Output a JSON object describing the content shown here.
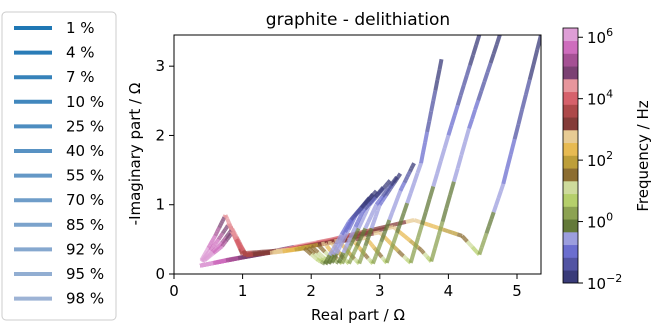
{
  "chart_data": {
    "type": "line",
    "title": "graphite - delithiation",
    "xlabel": "Real part  /  Ω",
    "ylabel": "-Imaginary part  /  Ω",
    "xlim": [
      0,
      5.35
    ],
    "ylim": [
      0,
      3.45
    ],
    "xticks": [
      "0",
      "1",
      "2",
      "3",
      "4",
      "5"
    ],
    "yticks": [
      "0",
      "1",
      "2",
      "3"
    ],
    "grid": false,
    "legend": {
      "placement": "left, outside plot",
      "entries": [
        "1 %",
        "4 %",
        "7 %",
        "10 %",
        "25 %",
        "40 %",
        "55 %",
        "70 %",
        "85 %",
        "92 %",
        "95 %",
        "98 %"
      ],
      "colors": [
        "#1f77b4",
        "#2a7cb7",
        "#3682ba",
        "#4187bd",
        "#4d8dc0",
        "#5892c3",
        "#6498c6",
        "#6f9dc9",
        "#7ba3cc",
        "#86a8cf",
        "#92aed2",
        "#9db3d5"
      ]
    },
    "colorbar": {
      "label": "Frequency  /  Hz",
      "scale": "log",
      "range": [
        0.01,
        2000000
      ],
      "ticks": [
        "10",
        "10",
        "10",
        "10",
        "10"
      ],
      "tick_exponents": [
        "−2",
        "0",
        "2",
        "4",
        "6"
      ],
      "colormap": "tab20b",
      "colors": [
        "#393b79",
        "#5254a3",
        "#6b6ecf",
        "#9c9ede",
        "#637939",
        "#8ca252",
        "#b5cf6b",
        "#cedb9c",
        "#8c6d31",
        "#bd9e39",
        "#e7ba52",
        "#e7cb94",
        "#843c39",
        "#ad494a",
        "#d6616b",
        "#e7969c",
        "#7b4173",
        "#a55194",
        "#ce6dbd",
        "#de9ed6"
      ]
    },
    "series": [
      {
        "name": "1 %",
        "values": [
          [
            0.38,
            0.12
          ],
          [
            1.2,
            0.28
          ],
          [
            2.3,
            0.5
          ],
          [
            3.5,
            0.78
          ],
          [
            4.2,
            0.55
          ],
          [
            4.45,
            0.28
          ],
          [
            4.8,
            1.3
          ],
          [
            5.35,
            3.45
          ]
        ]
      },
      {
        "name": "4 %",
        "values": [
          [
            0.38,
            0.12
          ],
          [
            1.15,
            0.27
          ],
          [
            2.2,
            0.46
          ],
          [
            3.2,
            0.68
          ],
          [
            3.6,
            0.35
          ],
          [
            3.75,
            0.18
          ],
          [
            4.3,
            2.1
          ],
          [
            4.75,
            3.45
          ]
        ]
      },
      {
        "name": "7 %",
        "values": [
          [
            0.38,
            0.12
          ],
          [
            1.1,
            0.26
          ],
          [
            2.1,
            0.44
          ],
          [
            3.0,
            0.6
          ],
          [
            3.3,
            0.3
          ],
          [
            3.45,
            0.16
          ],
          [
            4.0,
            2.0
          ],
          [
            4.45,
            3.45
          ]
        ]
      },
      {
        "name": "10 %",
        "values": [
          [
            0.38,
            0.12
          ],
          [
            1.05,
            0.25
          ],
          [
            2.0,
            0.42
          ],
          [
            2.8,
            0.52
          ],
          [
            3.0,
            0.28
          ],
          [
            3.1,
            0.16
          ],
          [
            3.6,
            1.6
          ],
          [
            3.9,
            3.1
          ]
        ]
      },
      {
        "name": "25 %",
        "values": [
          [
            0.38,
            0.12
          ],
          [
            1.0,
            0.24
          ],
          [
            1.9,
            0.4
          ],
          [
            2.6,
            0.5
          ],
          [
            2.8,
            0.26
          ],
          [
            2.9,
            0.15
          ],
          [
            3.3,
            1.2
          ],
          [
            3.5,
            1.6
          ]
        ]
      },
      {
        "name": "40 %",
        "values": [
          [
            0.38,
            0.12
          ],
          [
            0.95,
            0.23
          ],
          [
            1.8,
            0.38
          ],
          [
            2.4,
            0.48
          ],
          [
            2.6,
            0.25
          ],
          [
            2.7,
            0.15
          ],
          [
            3.0,
            1.0
          ],
          [
            3.3,
            1.45
          ]
        ]
      },
      {
        "name": "55 %",
        "values": [
          [
            0.38,
            0.12
          ],
          [
            0.9,
            0.22
          ],
          [
            1.75,
            0.37
          ],
          [
            2.3,
            0.45
          ],
          [
            2.45,
            0.25
          ],
          [
            2.55,
            0.15
          ],
          [
            2.95,
            1.0
          ],
          [
            3.25,
            1.4
          ]
        ]
      },
      {
        "name": "70 %",
        "values": [
          [
            0.38,
            0.12
          ],
          [
            0.85,
            0.22
          ],
          [
            1.7,
            0.36
          ],
          [
            2.2,
            0.44
          ],
          [
            2.35,
            0.25
          ],
          [
            2.45,
            0.15
          ],
          [
            2.85,
            1.0
          ],
          [
            3.15,
            1.35
          ]
        ]
      },
      {
        "name": "85 %",
        "values": [
          [
            0.4,
            0.2
          ],
          [
            0.6,
            0.55
          ],
          [
            0.75,
            0.85
          ],
          [
            1.0,
            0.3
          ],
          [
            1.7,
            0.35
          ],
          [
            2.1,
            0.42
          ],
          [
            2.3,
            0.22
          ],
          [
            2.4,
            0.16
          ],
          [
            2.75,
            0.9
          ],
          [
            3.05,
            1.25
          ]
        ]
      },
      {
        "name": "92 %",
        "values": [
          [
            0.4,
            0.18
          ],
          [
            0.65,
            0.5
          ],
          [
            0.8,
            0.72
          ],
          [
            1.0,
            0.28
          ],
          [
            1.65,
            0.34
          ],
          [
            2.0,
            0.4
          ],
          [
            2.2,
            0.22
          ],
          [
            2.3,
            0.16
          ],
          [
            2.65,
            0.85
          ],
          [
            2.95,
            1.2
          ]
        ]
      },
      {
        "name": "95 %",
        "values": [
          [
            0.42,
            0.18
          ],
          [
            0.7,
            0.45
          ],
          [
            0.85,
            0.65
          ],
          [
            1.05,
            0.27
          ],
          [
            1.6,
            0.33
          ],
          [
            1.95,
            0.38
          ],
          [
            2.15,
            0.2
          ],
          [
            2.25,
            0.15
          ],
          [
            2.6,
            0.8
          ],
          [
            2.9,
            1.15
          ]
        ]
      },
      {
        "name": "98 %",
        "values": [
          [
            0.45,
            0.2
          ],
          [
            0.7,
            0.4
          ],
          [
            0.85,
            0.6
          ],
          [
            1.05,
            0.27
          ],
          [
            1.55,
            0.32
          ],
          [
            1.9,
            0.37
          ],
          [
            2.1,
            0.2
          ],
          [
            2.2,
            0.15
          ],
          [
            2.55,
            0.75
          ],
          [
            2.85,
            1.1
          ]
        ]
      }
    ]
  }
}
